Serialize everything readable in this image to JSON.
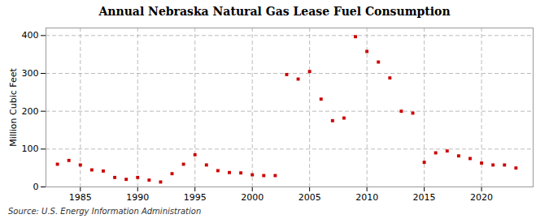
{
  "chart_data": {
    "type": "scatter",
    "title": "Annual Nebraska Natural Gas Lease Fuel Consumption",
    "ylabel": "Million Cubic Feet",
    "source": "Source: U.S. Energy Information Administration",
    "x": [
      1983,
      1984,
      1985,
      1986,
      1987,
      1988,
      1989,
      1990,
      1991,
      1992,
      1993,
      1994,
      1995,
      1996,
      1997,
      1998,
      1999,
      2000,
      2001,
      2002,
      2003,
      2004,
      2005,
      2006,
      2007,
      2008,
      2009,
      2010,
      2011,
      2012,
      2013,
      2014,
      2015,
      2016,
      2017,
      2018,
      2019,
      2020,
      2021,
      2022,
      2023
    ],
    "values": [
      60,
      70,
      58,
      45,
      42,
      25,
      20,
      25,
      18,
      13,
      35,
      60,
      85,
      58,
      43,
      38,
      37,
      32,
      30,
      30,
      297,
      285,
      305,
      232,
      175,
      182,
      397,
      358,
      330,
      288,
      200,
      195,
      65,
      90,
      95,
      82,
      75,
      63,
      58,
      58,
      50
    ],
    "color": "#cc0000",
    "marker": "square",
    "xlim": [
      1982.0,
      2024.5
    ],
    "xticks": [
      1985,
      1990,
      1995,
      2000,
      2005,
      2010,
      2015,
      2020
    ],
    "ylim": [
      0,
      420
    ],
    "yticks": [
      0,
      100,
      200,
      300,
      400
    ],
    "grid": true
  }
}
